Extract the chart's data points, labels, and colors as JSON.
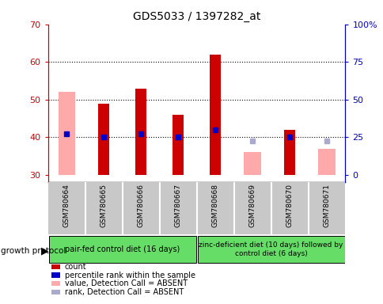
{
  "title": "GDS5033 / 1397282_at",
  "samples": [
    "GSM780664",
    "GSM780665",
    "GSM780666",
    "GSM780667",
    "GSM780668",
    "GSM780669",
    "GSM780670",
    "GSM780671"
  ],
  "count_values": [
    null,
    49,
    53,
    46,
    62,
    null,
    42,
    null
  ],
  "value_absent": [
    52,
    null,
    null,
    null,
    null,
    36,
    null,
    37
  ],
  "rank_values": [
    41,
    40,
    41,
    40,
    42,
    null,
    40,
    null
  ],
  "rank_absent": [
    null,
    null,
    null,
    null,
    null,
    39,
    null,
    39
  ],
  "bar_bottom": 30,
  "ylim": [
    28,
    70
  ],
  "yticks_left": [
    30,
    40,
    50,
    60,
    70
  ],
  "right_ticks_pos": [
    30,
    40,
    50,
    60,
    70
  ],
  "right_ticks_labels": [
    "0",
    "25",
    "50",
    "75",
    "100%"
  ],
  "grid_lines": [
    40,
    50,
    60
  ],
  "group1_label": "pair-fed control diet (16 days)",
  "group2_label": "zinc-deficient diet (10 days) followed by\ncontrol diet (6 days)",
  "growth_protocol_label": "growth protocol",
  "legend_items": [
    {
      "color": "#cc0000",
      "label": "count"
    },
    {
      "color": "#0000cc",
      "label": "percentile rank within the sample"
    },
    {
      "color": "#ffaaaa",
      "label": "value, Detection Call = ABSENT"
    },
    {
      "color": "#aaaacc",
      "label": "rank, Detection Call = ABSENT"
    }
  ],
  "count_bar_width": 0.3,
  "absent_bar_width": 0.45,
  "left_axis_color": "#cc0000",
  "right_axis_color": "#0000cc",
  "count_color": "#cc0000",
  "rank_color": "#0000cc",
  "value_absent_color": "#ffaaaa",
  "rank_absent_color": "#aaaacc",
  "sample_bg_color": "#c8c8c8",
  "group_color": "#66dd66",
  "plot_bg_color": "#ffffff",
  "separator_color": "#ffffff"
}
